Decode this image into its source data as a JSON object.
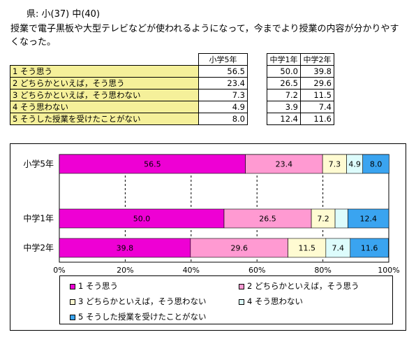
{
  "header": {
    "title": "県: 小(37)  中(40)"
  },
  "question": "授業で電子黒板や大型テレビなどが使われるようになって，今までより授業の内容が分かりやすくなった。",
  "table": {
    "group_headers": [
      "小学5年",
      "中学1年",
      "中学2年"
    ],
    "rows": [
      {
        "label": "1  そう思う",
        "e5": "56.5",
        "j1": "50.0",
        "j2": "39.8"
      },
      {
        "label": "2  どちらかといえば，そう思う",
        "e5": "23.4",
        "j1": "26.5",
        "j2": "29.6"
      },
      {
        "label": "3  どちらかといえば，そう思わない",
        "e5": "7.3",
        "j1": "7.2",
        "j2": "11.5"
      },
      {
        "label": "4  そう思わない",
        "e5": "4.9",
        "j1": "3.9",
        "j2": "7.4"
      },
      {
        "label": "5  そうした授業を受けたことがない",
        "e5": "8.0",
        "j1": "12.4",
        "j2": "11.6"
      }
    ]
  },
  "chart_data": {
    "type": "bar",
    "stacked": true,
    "orientation": "horizontal",
    "percent": true,
    "categories": [
      "小学5年",
      "中学1年",
      "中学2年"
    ],
    "series": [
      {
        "name": "1  そう思う",
        "color": "#ee00d4",
        "values": [
          56.5,
          50.0,
          39.8
        ],
        "labels": [
          "56.5",
          "50.0",
          "39.8"
        ]
      },
      {
        "name": "2  どちらかといえば，そう思う",
        "color": "#ff9ad2",
        "values": [
          23.4,
          26.5,
          29.6
        ],
        "labels": [
          "23.4",
          "26.5",
          "29.6"
        ]
      },
      {
        "name": "3  どちらかといえば，そう思わない",
        "color": "#fffbd2",
        "values": [
          7.3,
          7.2,
          11.5
        ],
        "labels": [
          "7.3",
          "7.2",
          "11.5"
        ]
      },
      {
        "name": "4  そう思わない",
        "color": "#ddfcfc",
        "values": [
          4.9,
          3.9,
          7.4
        ],
        "labels": [
          "4.9",
          "",
          "7.4"
        ]
      },
      {
        "name": "5  そうした授業を受けたことがない",
        "color": "#3aa4f0",
        "values": [
          8.0,
          12.4,
          11.6
        ],
        "labels": [
          "8.0",
          "12.4",
          "11.6"
        ]
      }
    ],
    "xlim": [
      0,
      100
    ],
    "xticks": [
      "0%",
      "20%",
      "40%",
      "60%",
      "80%",
      "100%"
    ],
    "grid": "vertical dashed",
    "legend_position": "bottom"
  }
}
